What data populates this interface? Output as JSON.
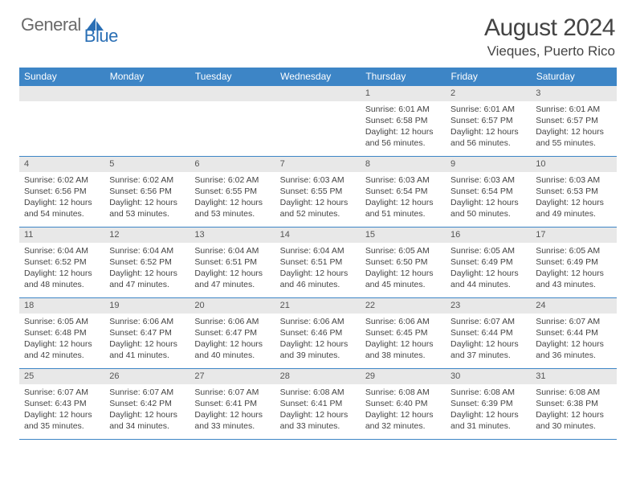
{
  "brand": {
    "general": "General",
    "blue": "Blue"
  },
  "title": "August 2024",
  "location": "Vieques, Puerto Rico",
  "colors": {
    "header_bg": "#3d85c6",
    "header_text": "#ffffff",
    "daynum_bg": "#e8e8e8",
    "border": "#3d85c6",
    "body_text": "#444444",
    "logo_gray": "#6a6a6a",
    "logo_blue": "#2a6fb5"
  },
  "weekdays": [
    "Sunday",
    "Monday",
    "Tuesday",
    "Wednesday",
    "Thursday",
    "Friday",
    "Saturday"
  ],
  "calendar": {
    "type": "table",
    "columns": 7,
    "rows": 5,
    "first_weekday_index": 4,
    "days": [
      {
        "n": "1",
        "sunrise": "6:01 AM",
        "sunset": "6:58 PM",
        "daylight": "12 hours and 56 minutes."
      },
      {
        "n": "2",
        "sunrise": "6:01 AM",
        "sunset": "6:57 PM",
        "daylight": "12 hours and 56 minutes."
      },
      {
        "n": "3",
        "sunrise": "6:01 AM",
        "sunset": "6:57 PM",
        "daylight": "12 hours and 55 minutes."
      },
      {
        "n": "4",
        "sunrise": "6:02 AM",
        "sunset": "6:56 PM",
        "daylight": "12 hours and 54 minutes."
      },
      {
        "n": "5",
        "sunrise": "6:02 AM",
        "sunset": "6:56 PM",
        "daylight": "12 hours and 53 minutes."
      },
      {
        "n": "6",
        "sunrise": "6:02 AM",
        "sunset": "6:55 PM",
        "daylight": "12 hours and 53 minutes."
      },
      {
        "n": "7",
        "sunrise": "6:03 AM",
        "sunset": "6:55 PM",
        "daylight": "12 hours and 52 minutes."
      },
      {
        "n": "8",
        "sunrise": "6:03 AM",
        "sunset": "6:54 PM",
        "daylight": "12 hours and 51 minutes."
      },
      {
        "n": "9",
        "sunrise": "6:03 AM",
        "sunset": "6:54 PM",
        "daylight": "12 hours and 50 minutes."
      },
      {
        "n": "10",
        "sunrise": "6:03 AM",
        "sunset": "6:53 PM",
        "daylight": "12 hours and 49 minutes."
      },
      {
        "n": "11",
        "sunrise": "6:04 AM",
        "sunset": "6:52 PM",
        "daylight": "12 hours and 48 minutes."
      },
      {
        "n": "12",
        "sunrise": "6:04 AM",
        "sunset": "6:52 PM",
        "daylight": "12 hours and 47 minutes."
      },
      {
        "n": "13",
        "sunrise": "6:04 AM",
        "sunset": "6:51 PM",
        "daylight": "12 hours and 47 minutes."
      },
      {
        "n": "14",
        "sunrise": "6:04 AM",
        "sunset": "6:51 PM",
        "daylight": "12 hours and 46 minutes."
      },
      {
        "n": "15",
        "sunrise": "6:05 AM",
        "sunset": "6:50 PM",
        "daylight": "12 hours and 45 minutes."
      },
      {
        "n": "16",
        "sunrise": "6:05 AM",
        "sunset": "6:49 PM",
        "daylight": "12 hours and 44 minutes."
      },
      {
        "n": "17",
        "sunrise": "6:05 AM",
        "sunset": "6:49 PM",
        "daylight": "12 hours and 43 minutes."
      },
      {
        "n": "18",
        "sunrise": "6:05 AM",
        "sunset": "6:48 PM",
        "daylight": "12 hours and 42 minutes."
      },
      {
        "n": "19",
        "sunrise": "6:06 AM",
        "sunset": "6:47 PM",
        "daylight": "12 hours and 41 minutes."
      },
      {
        "n": "20",
        "sunrise": "6:06 AM",
        "sunset": "6:47 PM",
        "daylight": "12 hours and 40 minutes."
      },
      {
        "n": "21",
        "sunrise": "6:06 AM",
        "sunset": "6:46 PM",
        "daylight": "12 hours and 39 minutes."
      },
      {
        "n": "22",
        "sunrise": "6:06 AM",
        "sunset": "6:45 PM",
        "daylight": "12 hours and 38 minutes."
      },
      {
        "n": "23",
        "sunrise": "6:07 AM",
        "sunset": "6:44 PM",
        "daylight": "12 hours and 37 minutes."
      },
      {
        "n": "24",
        "sunrise": "6:07 AM",
        "sunset": "6:44 PM",
        "daylight": "12 hours and 36 minutes."
      },
      {
        "n": "25",
        "sunrise": "6:07 AM",
        "sunset": "6:43 PM",
        "daylight": "12 hours and 35 minutes."
      },
      {
        "n": "26",
        "sunrise": "6:07 AM",
        "sunset": "6:42 PM",
        "daylight": "12 hours and 34 minutes."
      },
      {
        "n": "27",
        "sunrise": "6:07 AM",
        "sunset": "6:41 PM",
        "daylight": "12 hours and 33 minutes."
      },
      {
        "n": "28",
        "sunrise": "6:08 AM",
        "sunset": "6:41 PM",
        "daylight": "12 hours and 33 minutes."
      },
      {
        "n": "29",
        "sunrise": "6:08 AM",
        "sunset": "6:40 PM",
        "daylight": "12 hours and 32 minutes."
      },
      {
        "n": "30",
        "sunrise": "6:08 AM",
        "sunset": "6:39 PM",
        "daylight": "12 hours and 31 minutes."
      },
      {
        "n": "31",
        "sunrise": "6:08 AM",
        "sunset": "6:38 PM",
        "daylight": "12 hours and 30 minutes."
      }
    ],
    "labels": {
      "sunrise": "Sunrise:",
      "sunset": "Sunset:",
      "daylight": "Daylight:"
    }
  }
}
